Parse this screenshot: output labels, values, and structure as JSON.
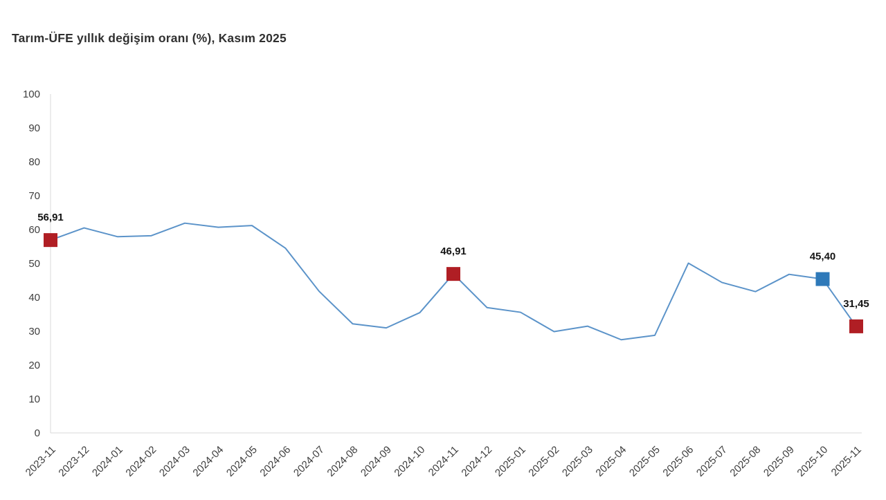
{
  "title": "Tarım-ÜFE yıllık değişim oranı (%), Kasım 2025",
  "colors": {
    "line": "#5b93c9",
    "marker_red": "#b01e24",
    "marker_blue": "#2e79b9",
    "axis_line": "#d8d8d8",
    "tick_text": "#3d3d3d",
    "title_text": "#303030",
    "point_label_text": "#141414",
    "background": "#ffffff"
  },
  "chart_data": {
    "type": "line",
    "title": "Tarım-ÜFE yıllık değişim oranı (%), Kasım 2025",
    "xlabel": "",
    "ylabel": "",
    "ylim": [
      0,
      100
    ],
    "ytick_step": 10,
    "grid": "off",
    "legend": "none",
    "x": [
      "2023-11",
      "2023-12",
      "2024-01",
      "2024-02",
      "2024-03",
      "2024-04",
      "2024-05",
      "2024-06",
      "2024-07",
      "2024-08",
      "2024-09",
      "2024-10",
      "2024-11",
      "2024-12",
      "2025-01",
      "2025-02",
      "2025-03",
      "2025-04",
      "2025-05",
      "2025-06",
      "2025-07",
      "2025-08",
      "2025-09",
      "2025-10",
      "2025-11"
    ],
    "series": [
      {
        "name": "Tarım-ÜFE yıllık değişim oranı (%)",
        "values": [
          56.91,
          60.5,
          57.9,
          58.2,
          61.9,
          60.7,
          61.2,
          54.5,
          41.8,
          32.2,
          31.0,
          35.5,
          46.91,
          37.0,
          35.6,
          29.9,
          31.5,
          27.5,
          28.8,
          50.1,
          44.4,
          41.7,
          46.8,
          45.4,
          31.45
        ]
      }
    ],
    "highlighted_points": [
      {
        "x": "2023-11",
        "value": 56.91,
        "label": "56,91",
        "marker": "red-square"
      },
      {
        "x": "2024-11",
        "value": 46.91,
        "label": "46,91",
        "marker": "red-square"
      },
      {
        "x": "2025-10",
        "value": 45.4,
        "label": "45,40",
        "marker": "blue-square"
      },
      {
        "x": "2025-11",
        "value": 31.45,
        "label": "31,45",
        "marker": "red-square"
      }
    ]
  }
}
